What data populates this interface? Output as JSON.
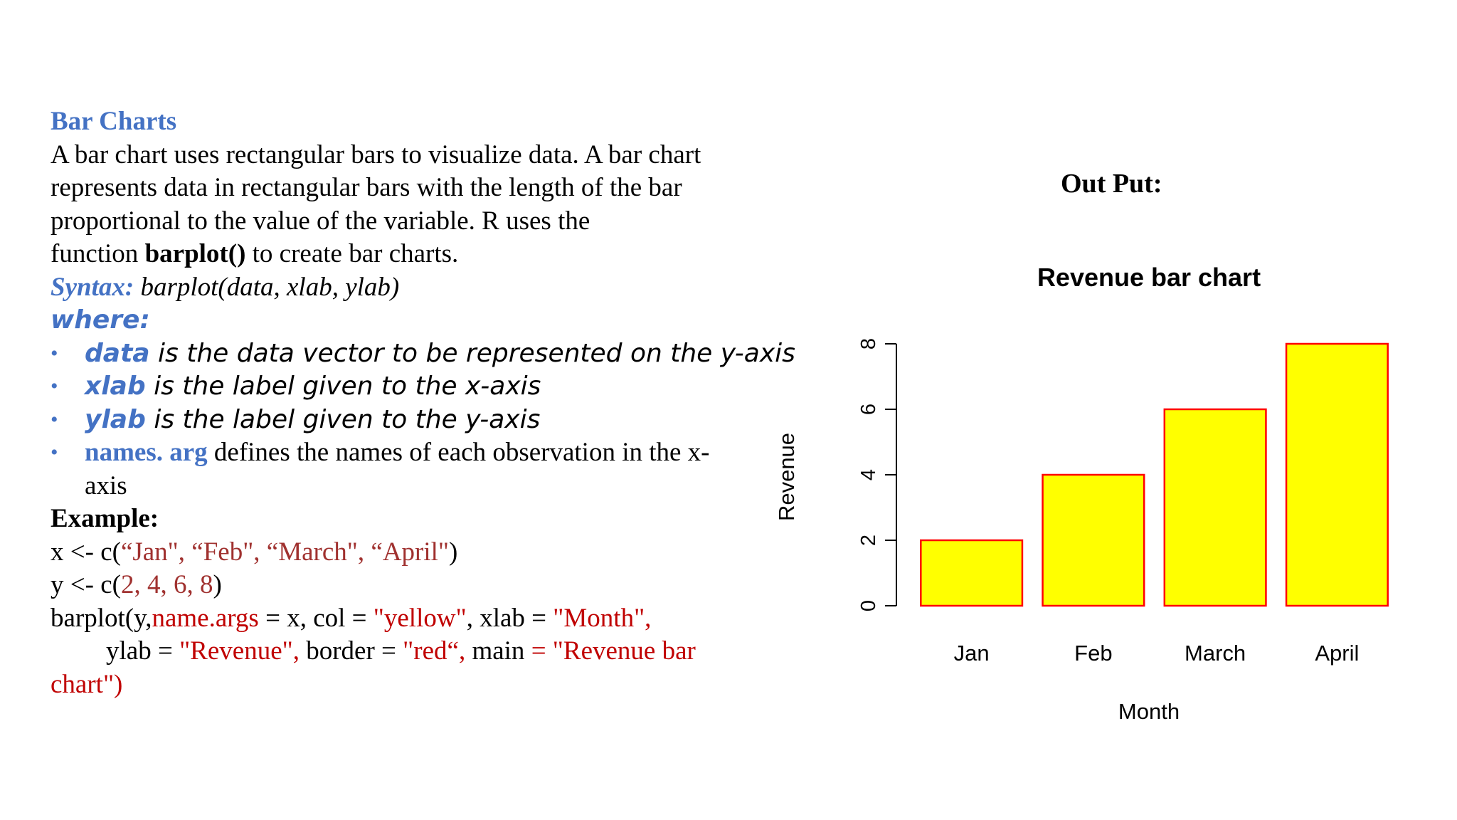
{
  "doc": {
    "heading": "Bar Charts",
    "para_lines": [
      "A bar chart uses rectangular bars to visualize data. A bar chart",
      "represents data in rectangular bars with the length of the bar",
      "proportional to the value of the variable. R uses the"
    ],
    "para_last_pre": "function ",
    "para_last_bold": "barplot()",
    "para_last_post": " to create bar charts.",
    "syntax_label": "Syntax:",
    "syntax_text": " barplot(data, xlab, ylab)",
    "where_label": "where:",
    "bullets": [
      {
        "term": "data",
        "desc": " is the data vector to be represented on the y-axis"
      },
      {
        "term": "xlab",
        "desc": " is the label given to the x-axis"
      },
      {
        "term": "ylab",
        "desc": " is the label given to the y-axis"
      }
    ],
    "bullet4_term": "names. arg",
    "bullet4_desc": " defines the names of each observation in the x-",
    "bullet4_cont": "axis",
    "bullet_symbol": "•",
    "example_label": "Example:",
    "code1_pre": "x <- c(",
    "code1_str": "“Jan\", “Feb\", “March\", “April\"",
    "code1_post": ")",
    "code2_pre": "y <- c(",
    "code2_vals": "2, 4, 6, 8",
    "code2_post": ")",
    "code3_a": "barplot(y,",
    "code3_b": "name.args",
    "code3_c": " = x, col = ",
    "code3_d": "\"yellow\"",
    "code3_e": ", xlab = ",
    "code3_f": "\"Month\"",
    "code3_g": ",",
    "code4_a": "ylab = ",
    "code4_b": "\"Revenue\",",
    "code4_c": " border = ",
    "code4_d": "\"red“,",
    "code4_e": " main ",
    "code4_f": "= \"Revenue bar",
    "code5": "chart\")"
  },
  "output_label": "Out Put:",
  "colors": {
    "accent_blue": "#4472c4",
    "code_red": "#c00000",
    "bar_fill": "#ffff00",
    "bar_border": "#ff0000"
  },
  "chart_data": {
    "type": "bar",
    "title": "Revenue bar chart",
    "xlabel": "Month",
    "ylabel": "Revenue",
    "categories": [
      "Jan",
      "Feb",
      "March",
      "April"
    ],
    "values": [
      2,
      4,
      6,
      8
    ],
    "ylim": [
      0,
      8
    ],
    "yticks": [
      "0",
      "2",
      "4",
      "6",
      "8"
    ],
    "grid": false
  }
}
